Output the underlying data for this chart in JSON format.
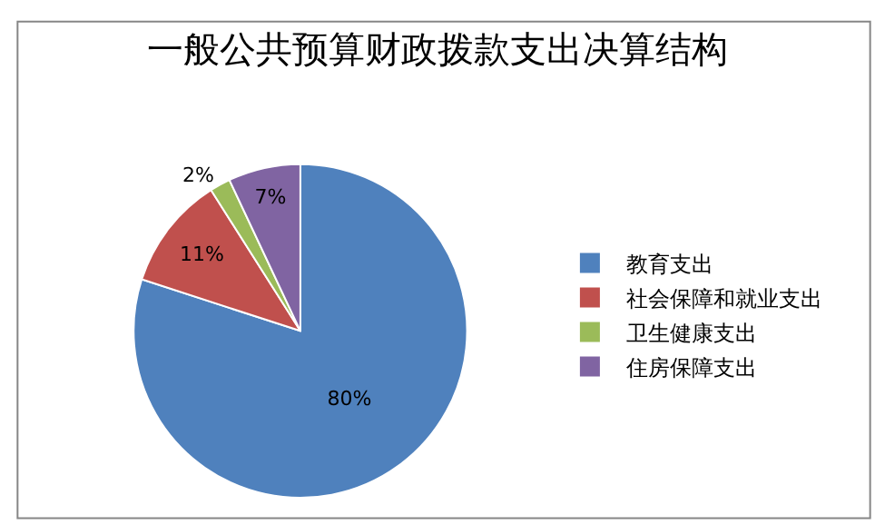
{
  "chart_data": {
    "type": "pie",
    "title": "一般公共预算财政拨款支出决算结构",
    "categories": [
      "教育支出",
      "社会保障和就业支出",
      "卫生健康支出",
      "住房保障支出"
    ],
    "values": [
      80,
      11,
      2,
      7
    ],
    "value_labels": [
      "80%",
      "11%",
      "2%",
      "7%"
    ],
    "colors": [
      "#4f81bd",
      "#c0504d",
      "#9bbb59",
      "#8064a2"
    ],
    "legend": "right"
  }
}
